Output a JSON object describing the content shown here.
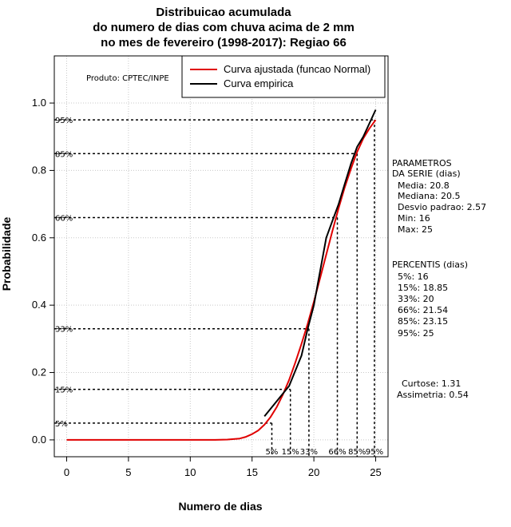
{
  "chart_data": {
    "type": "line",
    "title_lines": [
      "Distribuicao acumulada",
      "do numero de dias com chuva acima de 2 mm",
      "no mes de fevereiro (1998-2017): Regiao 66"
    ],
    "xlabel": "Numero de dias",
    "ylabel": "Probabilidade",
    "xlim": [
      -1,
      26
    ],
    "ylim": [
      -0.05,
      1.14
    ],
    "xticks": [
      0,
      5,
      10,
      15,
      20,
      25
    ],
    "yticks": [
      0.0,
      0.2,
      0.4,
      0.6,
      0.8,
      1.0
    ],
    "xtick_labels": [
      "0",
      "5",
      "10",
      "15",
      "20",
      "25"
    ],
    "ytick_labels": [
      "0.0",
      "0.2",
      "0.4",
      "0.6",
      "0.8",
      "1.0"
    ],
    "grid": true,
    "legend_position": "top-right",
    "product_label": "Produto: CPTEC/INPE",
    "series": [
      {
        "name": "Curva ajustada (funcao Normal)",
        "color": "#e00000",
        "x": [
          0,
          2,
          4,
          6,
          8,
          10,
          12,
          13,
          14,
          14.5,
          15,
          15.5,
          16,
          16.5,
          17,
          17.5,
          18,
          18.5,
          19,
          19.5,
          20,
          20.5,
          21,
          21.5,
          22,
          22.5,
          23,
          23.5,
          24,
          24.5,
          25
        ],
        "y": [
          0,
          0,
          0,
          0,
          0,
          0,
          0,
          0.001,
          0.004,
          0.009,
          0.017,
          0.028,
          0.045,
          0.068,
          0.098,
          0.135,
          0.178,
          0.23,
          0.285,
          0.345,
          0.41,
          0.48,
          0.55,
          0.62,
          0.688,
          0.75,
          0.805,
          0.855,
          0.895,
          0.925,
          0.95
        ]
      },
      {
        "name": "Curva empirica",
        "color": "#000000",
        "x": [
          16,
          18,
          19,
          19.5,
          20,
          21,
          21.5,
          22,
          22.5,
          23,
          23.5,
          24,
          25
        ],
        "y": [
          0.07,
          0.16,
          0.25,
          0.33,
          0.4,
          0.6,
          0.65,
          0.7,
          0.76,
          0.82,
          0.87,
          0.9,
          0.98
        ]
      }
    ],
    "percentile_lines": [
      {
        "label": "5%",
        "x": 16.6,
        "y": 0.05
      },
      {
        "label": "15%",
        "x": 18.1,
        "y": 0.15
      },
      {
        "label": "33%",
        "x": 19.6,
        "y": 0.33
      },
      {
        "label": "66%",
        "x": 21.9,
        "y": 0.66
      },
      {
        "label": "85%",
        "x": 23.5,
        "y": 0.85
      },
      {
        "label": "95%",
        "x": 24.9,
        "y": 0.95
      }
    ],
    "stats_box": {
      "params_title": [
        "PARAMETROS",
        "DA SERIE (dias)"
      ],
      "params": [
        "Media: 20.8",
        "Mediana: 20.5",
        "Desvio padrao: 2.57",
        "Min: 16",
        "Max: 25"
      ],
      "percentis_title": "PERCENTIS (dias)",
      "percentis": [
        "5%: 16",
        "15%: 18.85",
        "33%: 20",
        "66%: 21.54",
        "85%: 23.15",
        "95%: 25"
      ],
      "shape": [
        "Curtose: 1.31",
        "Assimetria: 0.54"
      ]
    }
  }
}
